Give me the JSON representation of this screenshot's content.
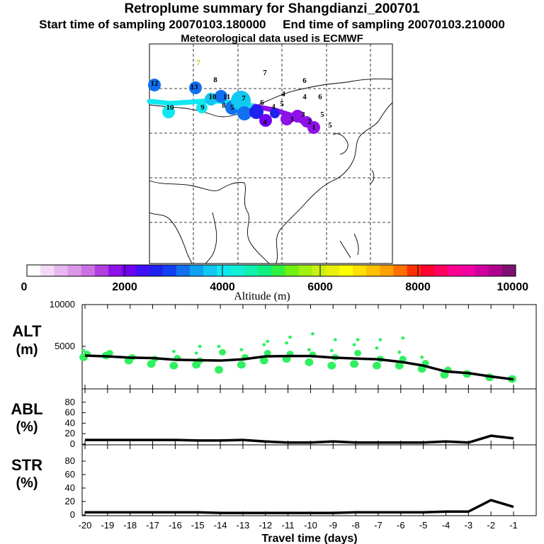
{
  "header": {
    "title": "Retroplume summary for Shangdianzi_200701",
    "start_sampling": "Start time of sampling 20070103.180000",
    "end_sampling": "End time of sampling 20070103.210000",
    "met_data": "Meteorological data used is ECMWF"
  },
  "colorbar": {
    "label": "Altitude (m)",
    "ticks": [
      "0",
      "2000",
      "4000",
      "6000",
      "8000",
      "10000"
    ],
    "colors": [
      "#ffffff",
      "#f4d8f8",
      "#e8b8f0",
      "#dc98e8",
      "#cc70e4",
      "#b040e0",
      "#9010e8",
      "#7000f0",
      "#4010f8",
      "#2020f0",
      "#1040f0",
      "#1070f0",
      "#10a0f0",
      "#10c8f0",
      "#10e8f0",
      "#10f0d8",
      "#10f0b0",
      "#10f080",
      "#30f040",
      "#70f010",
      "#a0f010",
      "#c8f010",
      "#e8f010",
      "#ffff00",
      "#ffe000",
      "#ffc000",
      "#ffa000",
      "#ff7000",
      "#ff3000",
      "#ff0030",
      "#ff0060",
      "#ff0090",
      "#f000a0",
      "#d000a0",
      "#b00090",
      "#801070"
    ]
  },
  "map": {
    "labels": [
      {
        "t": "7",
        "c": "#e8e800"
      },
      {
        "t": "8",
        "c": "#10c880"
      },
      {
        "t": "7",
        "c": "#10c880"
      },
      {
        "t": "6",
        "c": "#c8c800"
      },
      {
        "t": "12",
        "c": "#1070f0"
      },
      {
        "t": "13",
        "c": "#1070f0"
      },
      {
        "t": "10",
        "c": "#10e8f0"
      },
      {
        "t": "11",
        "c": "#10e8f0"
      },
      {
        "t": "9",
        "c": "#10e8f0"
      },
      {
        "t": "10",
        "c": "#10e8f0"
      },
      {
        "t": "8",
        "c": "#1070f0"
      },
      {
        "t": "7",
        "c": "#1070f0"
      },
      {
        "t": "6",
        "c": "#2020f0"
      },
      {
        "t": "5",
        "c": "#1040f0"
      },
      {
        "t": "4",
        "c": "#1070f0"
      },
      {
        "t": "4",
        "c": "#1040f0"
      },
      {
        "t": "5",
        "c": "#1040f0"
      },
      {
        "t": "4",
        "c": "#2020f0"
      },
      {
        "t": "5",
        "c": "#10a0f0"
      },
      {
        "t": "6",
        "c": "#1070f0"
      },
      {
        "t": "3",
        "c": "#7000f0"
      },
      {
        "t": "3",
        "c": "#9010e8"
      },
      {
        "t": "5",
        "c": "#10a0f0"
      },
      {
        "t": "4",
        "c": "#9010e8"
      },
      {
        "t": "2",
        "c": "#9010e8"
      },
      {
        "t": "1",
        "c": "#9010e8"
      }
    ]
  },
  "chart_data": [
    {
      "type": "line",
      "panel": "ALT",
      "ylabel_line1": "ALT",
      "ylabel_line2": "(m)",
      "ylim": [
        0,
        10000
      ],
      "yticks": [
        "10000",
        "5000"
      ],
      "x": [
        -20,
        -19,
        -18,
        -17,
        -16,
        -15,
        -14,
        -13,
        -12,
        -11,
        -10,
        -9,
        -8,
        -7,
        -6,
        -5,
        -4,
        -3,
        -2,
        -1
      ],
      "values": [
        3900,
        3800,
        3650,
        3600,
        3400,
        3350,
        3300,
        3450,
        3800,
        3850,
        3850,
        3650,
        3550,
        3450,
        3150,
        2700,
        2000,
        1800,
        1400,
        1050
      ],
      "scatter_color": "#30f060",
      "scatter": [
        {
          "x": -20,
          "y": [
            3700,
            4100,
            4500
          ]
        },
        {
          "x": -19,
          "y": [
            3900,
            4200
          ]
        },
        {
          "x": -18,
          "y": [
            3300,
            3700
          ]
        },
        {
          "x": -17,
          "y": [
            2900,
            3500
          ]
        },
        {
          "x": -16,
          "y": [
            2700,
            3600,
            4400
          ]
        },
        {
          "x": -15,
          "y": [
            2800,
            3300,
            4200,
            5000
          ]
        },
        {
          "x": -14,
          "y": [
            2200,
            4300,
            5000
          ]
        },
        {
          "x": -13,
          "y": [
            2800,
            3700,
            4600
          ]
        },
        {
          "x": -12,
          "y": [
            3300,
            4200,
            5200,
            5600
          ]
        },
        {
          "x": -11,
          "y": [
            3500,
            4100,
            5400,
            6100
          ]
        },
        {
          "x": -10,
          "y": [
            3100,
            4000,
            4600,
            6500
          ]
        },
        {
          "x": -9,
          "y": [
            2700,
            3700,
            4500,
            5800
          ]
        },
        {
          "x": -8,
          "y": [
            2900,
            4200,
            5200,
            5800
          ]
        },
        {
          "x": -7,
          "y": [
            2700,
            3500,
            4800,
            5800
          ]
        },
        {
          "x": -6,
          "y": [
            2700,
            3500,
            4300,
            6000
          ]
        },
        {
          "x": -5,
          "y": [
            2300,
            3000,
            3700
          ]
        },
        {
          "x": -4,
          "y": [
            1600,
            2200
          ]
        },
        {
          "x": -3,
          "y": [
            1700
          ]
        },
        {
          "x": -2,
          "y": [
            1300
          ]
        },
        {
          "x": -1,
          "y": [
            1100
          ]
        }
      ]
    },
    {
      "type": "line",
      "panel": "ABL",
      "ylabel_line1": "ABL",
      "ylabel_line2": "(%)",
      "ylim": [
        0,
        100
      ],
      "yticks": [
        "80",
        "60",
        "40",
        "20",
        "0"
      ],
      "x": [
        -20,
        -19,
        -18,
        -17,
        -16,
        -15,
        -14,
        -13,
        -12,
        -11,
        -10,
        -9,
        -8,
        -7,
        -6,
        -5,
        -4,
        -3,
        -2,
        -1
      ],
      "values": [
        8,
        8,
        8,
        8,
        8,
        7,
        7,
        8,
        5,
        3,
        3,
        5,
        3,
        3,
        3,
        3,
        5,
        3,
        16,
        11
      ]
    },
    {
      "type": "line",
      "panel": "STR",
      "ylabel_line1": "STR",
      "ylabel_line2": "(%)",
      "ylim": [
        0,
        100
      ],
      "yticks": [
        "80",
        "60",
        "40",
        "20",
        "0"
      ],
      "x": [
        -20,
        -19,
        -18,
        -17,
        -16,
        -15,
        -14,
        -13,
        -12,
        -11,
        -10,
        -9,
        -8,
        -7,
        -6,
        -5,
        -4,
        -3,
        -2,
        -1
      ],
      "values": [
        4,
        4,
        4,
        4,
        4,
        4,
        3,
        3,
        3,
        3,
        3,
        3,
        4,
        4,
        4,
        4,
        5,
        5,
        22,
        12
      ],
      "xlabel": "Travel time (days)",
      "xticks": [
        "-20",
        "-19",
        "-18",
        "-17",
        "-16",
        "-15",
        "-14",
        "-13",
        "-12",
        "-11",
        "-10",
        "-9",
        "-8",
        "-7",
        "-6",
        "-5",
        "-4",
        "-3",
        "-2",
        "-1"
      ]
    }
  ]
}
